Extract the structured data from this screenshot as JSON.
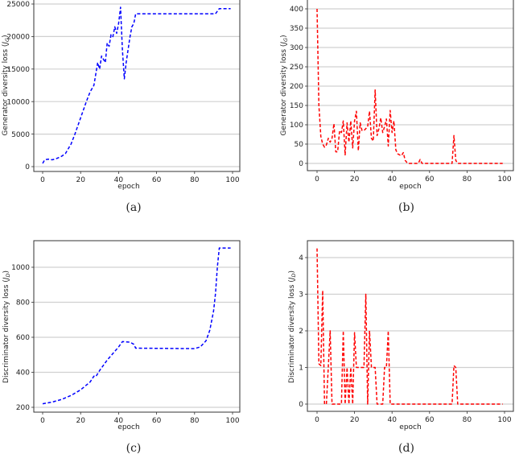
{
  "chart_data": [
    {
      "id": "a",
      "type": "line",
      "caption": "(a)",
      "xlabel": "epoch",
      "ylabel": "Generator diversity loss (J_G)",
      "xlim": [
        -4,
        104
      ],
      "ylim": [
        -1200,
        25500
      ],
      "xticks": [
        0,
        20,
        40,
        60,
        80,
        100
      ],
      "yticks": [
        0,
        5000,
        10000,
        15000,
        20000,
        25000
      ],
      "grid": "horizontal",
      "color": "#0000ff",
      "linestyle": "dashed",
      "x": [
        0,
        1,
        2,
        3,
        5,
        7,
        10,
        12,
        15,
        17,
        20,
        23,
        25,
        27,
        29,
        30,
        31,
        33,
        34,
        35,
        36,
        37,
        38,
        39,
        40,
        41,
        42,
        43,
        44,
        46,
        47,
        48,
        49,
        91,
        93,
        99
      ],
      "y": [
        500,
        1000,
        1100,
        1150,
        1050,
        1200,
        1600,
        2000,
        3500,
        5000,
        7500,
        10000,
        11500,
        12500,
        16000,
        15000,
        17000,
        16000,
        19000,
        18500,
        20300,
        20000,
        21500,
        20500,
        22000,
        24500,
        18000,
        13500,
        16000,
        20000,
        21500,
        22000,
        23500,
        23500,
        24300,
        24300
      ]
    },
    {
      "id": "b",
      "type": "line",
      "caption": "(b)",
      "xlabel": "epoch",
      "ylabel": "Generator diversity loss (J_G)",
      "xlim": [
        -4,
        104
      ],
      "ylim": [
        -20,
        420
      ],
      "xticks": [
        0,
        20,
        40,
        60,
        80,
        100
      ],
      "yticks": [
        0,
        50,
        100,
        150,
        200,
        250,
        300,
        350,
        400
      ],
      "grid": "horizontal",
      "color": "#ff0000",
      "linestyle": "dashed",
      "x": [
        0,
        1,
        2,
        3,
        4,
        5,
        6,
        7,
        8,
        9,
        10,
        11,
        12,
        13,
        14,
        15,
        16,
        17,
        18,
        19,
        20,
        21,
        22,
        23,
        24,
        25,
        26,
        27,
        28,
        29,
        30,
        31,
        32,
        33,
        34,
        35,
        36,
        37,
        38,
        39,
        40,
        41,
        42,
        43,
        44,
        45,
        46,
        47,
        48,
        49,
        54,
        55,
        56,
        72,
        73,
        74,
        75,
        99
      ],
      "y": [
        400,
        150,
        70,
        50,
        42,
        48,
        65,
        55,
        65,
        103,
        30,
        30,
        85,
        80,
        110,
        22,
        105,
        55,
        110,
        40,
        110,
        135,
        33,
        105,
        85,
        85,
        90,
        95,
        135,
        65,
        58,
        190,
        72,
        90,
        118,
        80,
        95,
        115,
        45,
        137,
        80,
        110,
        35,
        25,
        22,
        20,
        28,
        8,
        2,
        0,
        0,
        10,
        0,
        0,
        72,
        8,
        0,
        0
      ]
    },
    {
      "id": "c",
      "type": "line",
      "caption": "(c)",
      "xlabel": "epoch",
      "ylabel": "Discriminator diversity loss (J_D)",
      "xlim": [
        -4,
        104
      ],
      "ylim": [
        185,
        1160
      ],
      "xticks": [
        0,
        20,
        40,
        60,
        80,
        100
      ],
      "yticks": [
        200,
        400,
        600,
        800,
        1000
      ],
      "grid": "horizontal",
      "color": "#0000ff",
      "linestyle": "dashed",
      "x": [
        0,
        5,
        10,
        15,
        20,
        25,
        27,
        28,
        30,
        32,
        34,
        40,
        42,
        46,
        48,
        49,
        80,
        83,
        86,
        88,
        90,
        91,
        92,
        93,
        99
      ],
      "y": [
        220,
        230,
        245,
        268,
        300,
        345,
        378,
        375,
        410,
        440,
        470,
        545,
        575,
        572,
        560,
        538,
        535,
        545,
        580,
        640,
        750,
        850,
        1000,
        1110,
        1110
      ]
    },
    {
      "id": "d",
      "type": "line",
      "caption": "(d)",
      "xlabel": "epoch",
      "ylabel": "Discriminator diversity loss (J_D)",
      "xlim": [
        -4,
        104
      ],
      "ylim": [
        -0.2,
        4.5
      ],
      "xticks": [
        0,
        20,
        40,
        60,
        80,
        100
      ],
      "yticks": [
        0,
        1,
        2,
        3,
        4
      ],
      "grid": "horizontal",
      "color": "#ff0000",
      "linestyle": "dashed",
      "x": [
        0,
        1,
        2,
        3,
        4,
        5,
        7,
        8,
        13,
        14,
        15,
        16,
        17,
        18,
        19,
        20,
        21,
        25,
        26,
        27,
        28,
        29,
        31,
        32,
        35,
        36,
        37,
        38,
        39,
        72,
        73,
        74,
        75,
        99
      ],
      "y": [
        4.25,
        1.1,
        1.05,
        3.1,
        0,
        0,
        2,
        0,
        0,
        2,
        0,
        1,
        0,
        1,
        0,
        1.95,
        1,
        1,
        3,
        0,
        2,
        1,
        1,
        0,
        0,
        1,
        1,
        2,
        0,
        0,
        1.05,
        1,
        0,
        0
      ]
    }
  ]
}
